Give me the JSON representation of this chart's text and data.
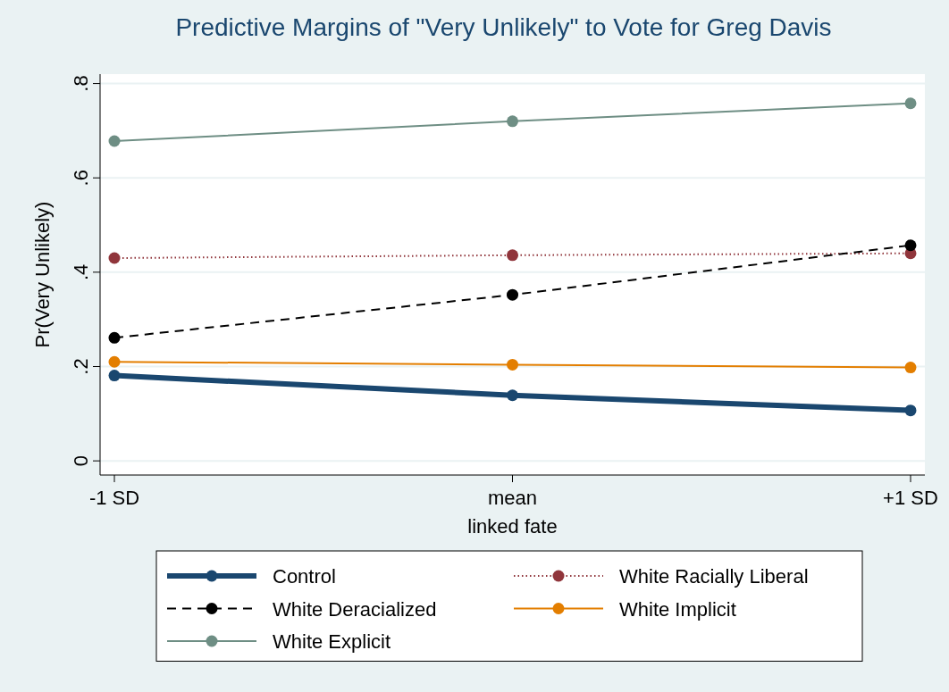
{
  "chart_data": {
    "type": "line",
    "title": "Predictive Margins of \"Very Unlikely\" to Vote for Greg Davis",
    "xlabel": "linked fate",
    "ylabel": "Pr(Very Unlikely)",
    "categories": [
      "-1 SD",
      "mean",
      "+1 SD"
    ],
    "ylim": [
      -0.03,
      0.82
    ],
    "yticks": [
      0,
      {
        "value": 0.2,
        "label": ".2"
      },
      {
        "value": 0.4,
        "label": ".4"
      },
      {
        "value": 0.6,
        "label": ".6"
      },
      {
        "value": 0.8,
        "label": ".8"
      }
    ],
    "grid": "y",
    "legend": "bottom",
    "marker": "circle",
    "series": [
      {
        "name": "Control",
        "color": "#1a476f",
        "line_style": "solid",
        "values": [
          0.181,
          0.139,
          0.107
        ]
      },
      {
        "name": "White Racially Liberal",
        "color": "#90353b",
        "line_style": "dotted",
        "values": [
          0.43,
          0.436,
          0.44
        ]
      },
      {
        "name": "White Deracialized",
        "color": "#000000",
        "line_style": "dashed",
        "values": [
          0.261,
          0.352,
          0.457
        ]
      },
      {
        "name": "White Implicit",
        "color": "#e37e00",
        "line_style": "solid",
        "values": [
          0.21,
          0.204,
          0.198
        ]
      },
      {
        "name": "White Explicit",
        "color": "#6e8e84",
        "line_style": "solid",
        "values": [
          0.678,
          0.72,
          0.758
        ]
      }
    ]
  }
}
